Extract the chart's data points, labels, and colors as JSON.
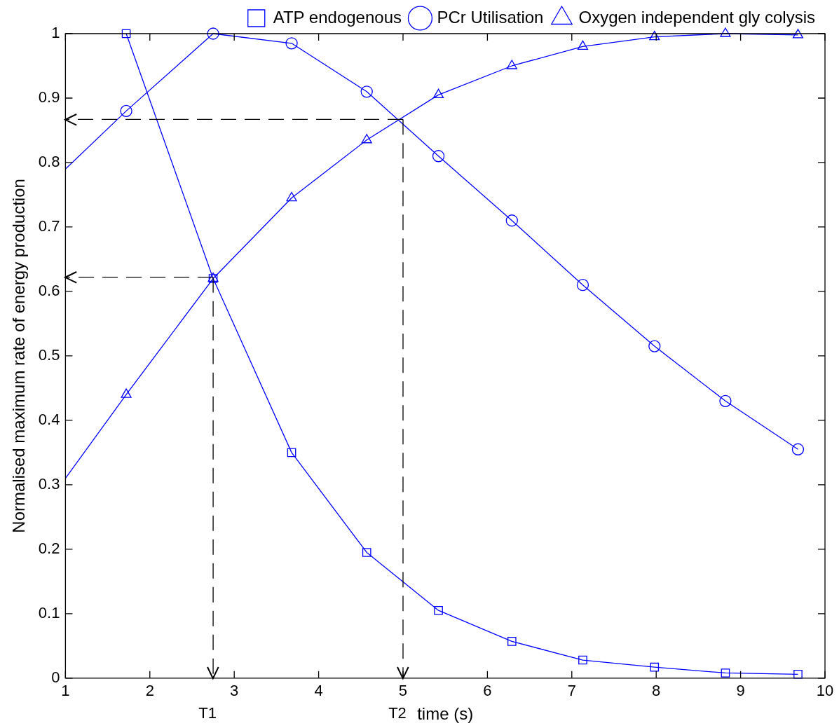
{
  "chart_data": {
    "type": "line",
    "xlabel": "time (s)",
    "ylabel": "Normalised maximum rate of energy production",
    "xlim": [
      1,
      10
    ],
    "xticks": [
      1,
      2,
      3,
      4,
      5,
      6,
      7,
      8,
      9,
      10
    ],
    "ylim": [
      0,
      1
    ],
    "yticks": [
      0,
      0.1,
      0.2,
      0.3,
      0.4,
      0.5,
      0.6,
      0.7,
      0.8,
      0.9,
      1
    ],
    "grid": false,
    "legend": "top",
    "line_style": "solid",
    "series": [
      {
        "name": "ATP endogenous",
        "color": "#0000ff",
        "marker": "square",
        "x": [
          1.72,
          2.75,
          3.68,
          4.57,
          5.42,
          6.29,
          7.13,
          7.98,
          8.82,
          9.68
        ],
        "values": [
          1.0,
          0.62,
          0.35,
          0.195,
          0.105,
          0.057,
          0.028,
          0.017,
          0.008,
          0.006
        ]
      },
      {
        "name": "PCr Utilisation",
        "color": "#0000ff",
        "marker": "circle",
        "x": [
          1,
          1.72,
          2.75,
          3.68,
          4.57,
          5.42,
          6.29,
          7.13,
          7.98,
          8.82,
          9.68
        ],
        "values": [
          0.79,
          0.88,
          1.0,
          0.985,
          0.91,
          0.81,
          0.71,
          0.61,
          0.515,
          0.43,
          0.355
        ]
      },
      {
        "name": "Oxygen independent gly colysis",
        "color": "#0000ff",
        "marker": "triangle",
        "x": [
          1,
          1.72,
          2.75,
          3.68,
          4.57,
          5.42,
          6.29,
          7.13,
          7.98,
          8.82,
          9.68
        ],
        "values": [
          0.31,
          0.44,
          0.62,
          0.745,
          0.835,
          0.905,
          0.95,
          0.98,
          0.995,
          1.0,
          0.998
        ]
      }
    ],
    "ref_lines": [
      {
        "axis": "x",
        "value": 2.75,
        "label": "T1",
        "color": "#000000",
        "line_style": "dashed"
      },
      {
        "axis": "x",
        "value": 5,
        "label": "T2",
        "color": "#000000",
        "line_style": "dashed"
      },
      {
        "axis": "y",
        "value": 0.622,
        "color": "#000000",
        "line_style": "dashed"
      },
      {
        "axis": "y",
        "value": 0.867,
        "color": "#000000",
        "line_style": "dashed"
      }
    ]
  }
}
